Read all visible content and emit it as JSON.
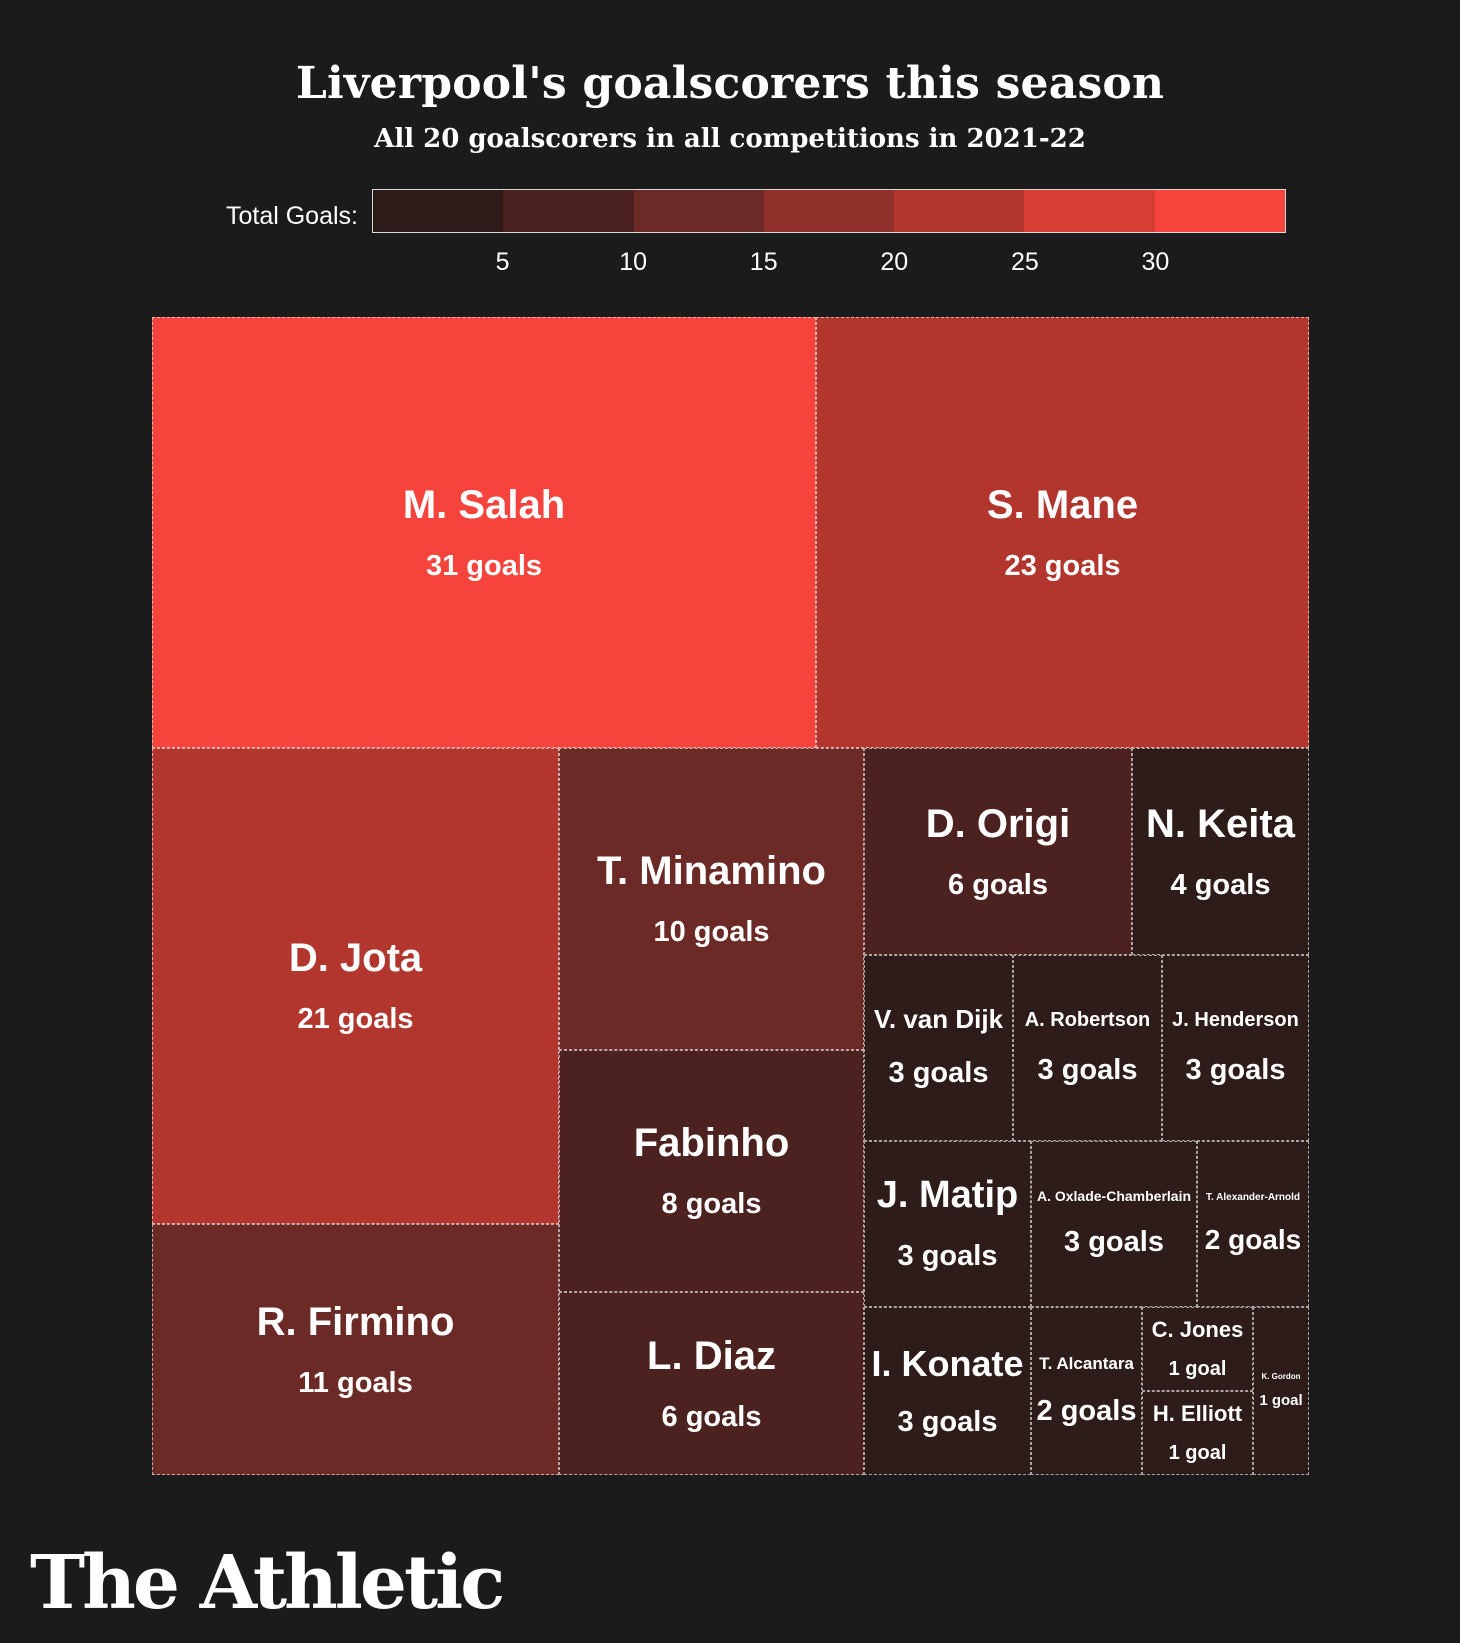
{
  "title": "Liverpool's goalscorers this season",
  "subtitle": "All 20 goalscorers in all competitions in 2021-22",
  "legend": {
    "label": "Total Goals:",
    "colors": [
      "#2e1c1b",
      "#4b221f",
      "#6b2a25",
      "#8f302a",
      "#b2362e",
      "#d63d33",
      "#f6443c"
    ],
    "ticks": [
      "5",
      "10",
      "15",
      "20",
      "25",
      "30"
    ]
  },
  "chart_data": {
    "type": "treemap",
    "title": "Liverpool's goalscorers this season",
    "subtitle": "All 20 goalscorers in all competitions in 2021-22",
    "color_scale_label": "Total Goals:",
    "items": [
      {
        "name": "M. Salah",
        "goals": 31,
        "label": "31 goals"
      },
      {
        "name": "S. Mane",
        "goals": 23,
        "label": "23 goals"
      },
      {
        "name": "D. Jota",
        "goals": 21,
        "label": "21 goals"
      },
      {
        "name": "R. Firmino",
        "goals": 11,
        "label": "11 goals"
      },
      {
        "name": "T. Minamino",
        "goals": 10,
        "label": "10 goals"
      },
      {
        "name": "Fabinho",
        "goals": 8,
        "label": "8 goals"
      },
      {
        "name": "L. Diaz",
        "goals": 6,
        "label": "6 goals"
      },
      {
        "name": "D. Origi",
        "goals": 6,
        "label": "6 goals"
      },
      {
        "name": "N. Keita",
        "goals": 4,
        "label": "4 goals"
      },
      {
        "name": "V. van Dijk",
        "goals": 3,
        "label": "3 goals"
      },
      {
        "name": "A. Robertson",
        "goals": 3,
        "label": "3 goals"
      },
      {
        "name": "J. Henderson",
        "goals": 3,
        "label": "3 goals"
      },
      {
        "name": "J. Matip",
        "goals": 3,
        "label": "3 goals"
      },
      {
        "name": "A. Oxlade-Chamberlain",
        "goals": 3,
        "label": "3 goals"
      },
      {
        "name": "T. Alexander-Arnold",
        "goals": 2,
        "label": "2 goals"
      },
      {
        "name": "I. Konate",
        "goals": 3,
        "label": "3 goals"
      },
      {
        "name": "T. Alcantara",
        "goals": 2,
        "label": "2 goals"
      },
      {
        "name": "C. Jones",
        "goals": 1,
        "label": "1 goal"
      },
      {
        "name": "H. Elliott",
        "goals": 1,
        "label": "1 goal"
      },
      {
        "name": "K. Gordon",
        "goals": 1,
        "label": "1 goal"
      }
    ]
  },
  "brand": "The Athletic"
}
